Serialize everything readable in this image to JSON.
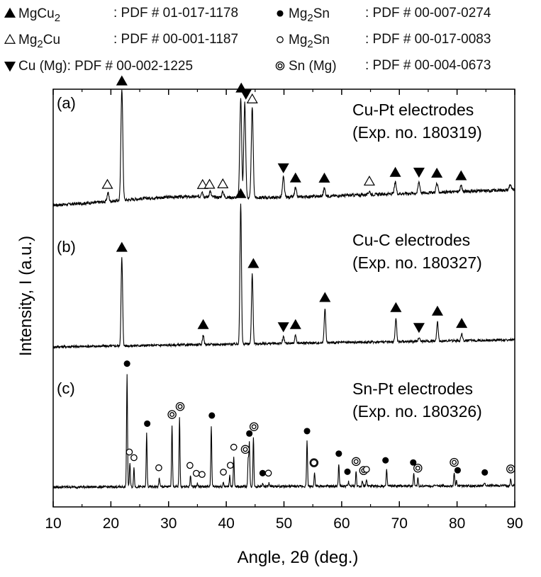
{
  "legend": [
    {
      "marker": "filled-up",
      "name": "MgCu",
      "sub": "2",
      "name_rest": "",
      "pdf": ": PDF # 01-017-1178"
    },
    {
      "marker": "open-up",
      "name": "Mg",
      "sub": "2",
      "name_rest": "Cu",
      "pdf": ": PDF # 00-001-1187"
    },
    {
      "marker": "filled-down",
      "name": "Cu (Mg)",
      "sub": "",
      "name_rest": "",
      "pdf": ": PDF # 00-002-1225"
    },
    {
      "marker": "filled-circle",
      "name": "Mg",
      "sub": "2",
      "name_rest": "Sn",
      "pdf": ": PDF # 00-007-0274"
    },
    {
      "marker": "open-circle",
      "name": "Mg",
      "sub": "2",
      "name_rest": "Sn",
      "pdf": ": PDF # 00-017-0083"
    },
    {
      "marker": "double-circle",
      "name": "Sn (Mg)",
      "sub": "",
      "name_rest": "",
      "pdf": ": PDF # 00-004-0673"
    }
  ],
  "chart_data": {
    "type": "line",
    "xlabel": "Angle, 2θ (deg.)",
    "ylabel": "Intensity, I (a.u.)",
    "xlim": [
      10,
      90
    ],
    "xticks": [
      10,
      20,
      30,
      40,
      50,
      60,
      70,
      80,
      90
    ],
    "series": [
      {
        "panel": "(a)",
        "label_line1": "Cu-Pt electrodes",
        "label_line2": "(Exp. no. 180319)",
        "peaks": [
          [
            19.5,
            0.08
          ],
          [
            21.9,
            1.0
          ],
          [
            35.8,
            0.05
          ],
          [
            37.2,
            0.05
          ],
          [
            39.4,
            0.05
          ],
          [
            42.5,
            0.9
          ],
          [
            43.2,
            0.85
          ],
          [
            44.5,
            0.8
          ],
          [
            49.9,
            0.18
          ],
          [
            52.0,
            0.08
          ],
          [
            57.0,
            0.07
          ],
          [
            64.8,
            0.03
          ],
          [
            69.3,
            0.1
          ],
          [
            73.4,
            0.1
          ],
          [
            76.5,
            0.08
          ],
          [
            80.7,
            0.05
          ],
          [
            89.2,
            0.05
          ]
        ],
        "markers": [
          {
            "x": 19.4,
            "m": "open-up"
          },
          {
            "x": 21.9,
            "m": "filled-up"
          },
          {
            "x": 35.9,
            "m": "open-up"
          },
          {
            "x": 37.1,
            "m": "open-up"
          },
          {
            "x": 39.4,
            "m": "open-up"
          },
          {
            "x": 42.6,
            "m": "filled-up"
          },
          {
            "x": 43.4,
            "m": "filled-down"
          },
          {
            "x": 44.5,
            "m": "open-up"
          },
          {
            "x": 49.9,
            "m": "filled-down"
          },
          {
            "x": 52.0,
            "m": "filled-up"
          },
          {
            "x": 57.0,
            "m": "filled-up"
          },
          {
            "x": 64.8,
            "m": "open-up"
          },
          {
            "x": 69.3,
            "m": "filled-up"
          },
          {
            "x": 73.4,
            "m": "filled-down"
          },
          {
            "x": 76.5,
            "m": "filled-up"
          },
          {
            "x": 80.7,
            "m": "filled-up"
          }
        ]
      },
      {
        "panel": "(b)",
        "label_line1": "Cu-C electrodes",
        "label_line2": "(Exp. no. 180327)",
        "peaks": [
          [
            21.9,
            0.63
          ],
          [
            36.0,
            0.07
          ],
          [
            42.5,
            1.0
          ],
          [
            44.5,
            0.5
          ],
          [
            49.9,
            0.05
          ],
          [
            52.0,
            0.06
          ],
          [
            57.1,
            0.25
          ],
          [
            69.4,
            0.17
          ],
          [
            73.4,
            0.03
          ],
          [
            76.6,
            0.14
          ],
          [
            80.8,
            0.05
          ]
        ],
        "markers": [
          {
            "x": 21.9,
            "m": "filled-up"
          },
          {
            "x": 36.0,
            "m": "filled-up"
          },
          {
            "x": 42.5,
            "m": "filled-up"
          },
          {
            "x": 44.7,
            "m": "filled-up"
          },
          {
            "x": 49.9,
            "m": "filled-down"
          },
          {
            "x": 52.0,
            "m": "filled-up"
          },
          {
            "x": 57.1,
            "m": "filled-up"
          },
          {
            "x": 69.4,
            "m": "filled-up"
          },
          {
            "x": 73.4,
            "m": "filled-down"
          },
          {
            "x": 76.6,
            "m": "filled-up"
          },
          {
            "x": 80.8,
            "m": "filled-up"
          }
        ]
      },
      {
        "panel": "(c)",
        "label_line1": "Sn-Pt electrodes",
        "label_line2": "(Exp. no. 180326)",
        "peaks": [
          [
            22.8,
            1.0
          ],
          [
            23.3,
            0.22
          ],
          [
            24.0,
            0.17
          ],
          [
            26.2,
            0.47
          ],
          [
            28.4,
            0.08
          ],
          [
            30.6,
            0.55
          ],
          [
            31.9,
            0.62
          ],
          [
            33.8,
            0.1
          ],
          [
            35.0,
            0.03
          ],
          [
            37.4,
            0.54
          ],
          [
            39.5,
            0.04
          ],
          [
            40.6,
            0.1
          ],
          [
            41.3,
            0.26
          ],
          [
            43.8,
            0.24
          ],
          [
            44.0,
            0.38
          ],
          [
            44.7,
            0.44
          ],
          [
            46.3,
            0.03
          ],
          [
            47.4,
            0.03
          ],
          [
            54.0,
            0.4
          ],
          [
            55.3,
            0.12
          ],
          [
            59.5,
            0.2
          ],
          [
            61.2,
            0.04
          ],
          [
            62.5,
            0.13
          ],
          [
            63.6,
            0.05
          ],
          [
            64.3,
            0.06
          ],
          [
            67.8,
            0.14
          ],
          [
            72.5,
            0.12
          ],
          [
            73.2,
            0.07
          ],
          [
            79.5,
            0.12
          ],
          [
            79.9,
            0.05
          ],
          [
            84.8,
            0.03
          ],
          [
            89.3,
            0.06
          ]
        ],
        "markers": [
          {
            "x": 22.8,
            "m": "filled-circle"
          },
          {
            "x": 23.2,
            "m": "open-circle"
          },
          {
            "x": 24.0,
            "m": "open-circle"
          },
          {
            "x": 26.3,
            "m": "filled-circle"
          },
          {
            "x": 28.3,
            "m": "open-circle"
          },
          {
            "x": 30.6,
            "m": "double-circle"
          },
          {
            "x": 32.0,
            "m": "double-circle"
          },
          {
            "x": 33.7,
            "m": "open-circle"
          },
          {
            "x": 34.8,
            "m": "open-circle"
          },
          {
            "x": 35.8,
            "m": "open-circle"
          },
          {
            "x": 37.5,
            "m": "filled-circle"
          },
          {
            "x": 39.5,
            "m": "open-circle"
          },
          {
            "x": 40.7,
            "m": "open-circle"
          },
          {
            "x": 41.3,
            "m": "open-circle"
          },
          {
            "x": 43.3,
            "m": "double-circle"
          },
          {
            "x": 44.0,
            "m": "filled-circle"
          },
          {
            "x": 44.8,
            "m": "double-circle"
          },
          {
            "x": 46.3,
            "m": "filled-circle"
          },
          {
            "x": 47.3,
            "m": "open-circle"
          },
          {
            "x": 54.0,
            "m": "filled-circle"
          },
          {
            "x": 55.2,
            "m": "double-circle"
          },
          {
            "x": 55.2,
            "m": "open-circle"
          },
          {
            "x": 59.5,
            "m": "filled-circle"
          },
          {
            "x": 61.0,
            "m": "filled-circle"
          },
          {
            "x": 62.5,
            "m": "double-circle"
          },
          {
            "x": 63.8,
            "m": "double-circle"
          },
          {
            "x": 64.3,
            "m": "open-circle"
          },
          {
            "x": 67.6,
            "m": "filled-circle"
          },
          {
            "x": 72.4,
            "m": "filled-circle"
          },
          {
            "x": 73.2,
            "m": "double-circle"
          },
          {
            "x": 79.5,
            "m": "double-circle"
          },
          {
            "x": 80.1,
            "m": "filled-circle"
          },
          {
            "x": 84.8,
            "m": "filled-circle"
          },
          {
            "x": 89.3,
            "m": "double-circle"
          }
        ]
      }
    ]
  }
}
